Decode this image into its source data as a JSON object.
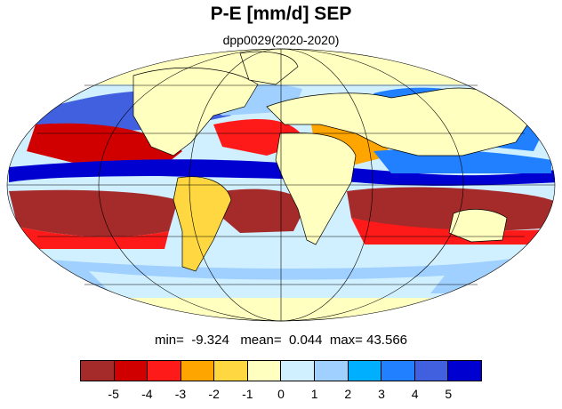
{
  "title": "P-E [mm/d] SEP",
  "subtitle": "dpp0029(2020-2020)",
  "stats": {
    "min_label": "min=",
    "min_value": "-9.324",
    "mean_label": "mean=",
    "mean_value": "0.044",
    "max_label": "max=",
    "max_value": "43.566"
  },
  "colorbar": {
    "colors": [
      "#a52a2a",
      "#d00000",
      "#ff1a1a",
      "#ffa500",
      "#ffd740",
      "#ffffc0",
      "#d0f0ff",
      "#a0d0ff",
      "#00b0ff",
      "#2080ff",
      "#4060e0",
      "#0000d0"
    ],
    "labels": [
      "-5",
      "-4",
      "-3",
      "-2",
      "-1",
      "0",
      "1",
      "2",
      "3",
      "4",
      "5"
    ]
  },
  "map": {
    "projection": "mollweide",
    "ocean_color": "#d0f0ff",
    "coastline_color": "#000000"
  }
}
